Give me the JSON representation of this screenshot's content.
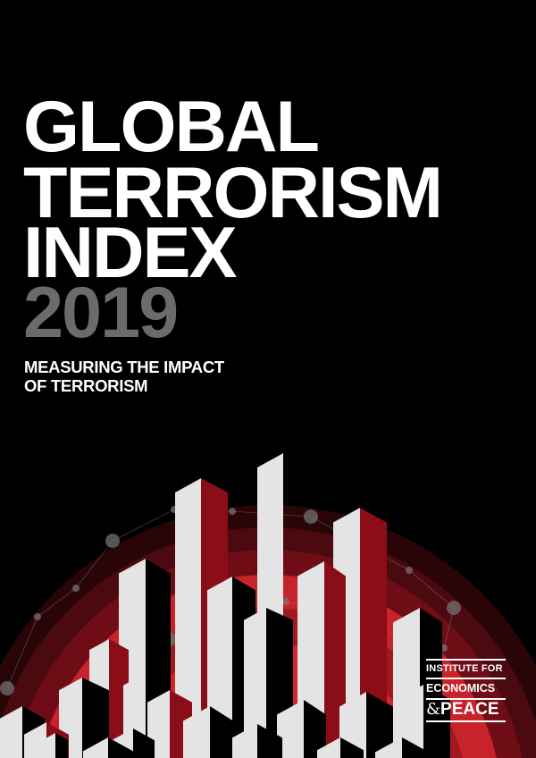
{
  "cover": {
    "title_lines": [
      "GLOBAL",
      "TERRORISM",
      "INDEX"
    ],
    "year": "2019",
    "subtitle_lines": [
      "MEASURING THE IMPACT",
      "OF TERRORISM"
    ]
  },
  "publisher_logo": {
    "line1": "INSTITUTE FOR",
    "line2": "ECONOMICS",
    "line3_amp": "&",
    "line3": "PEACE"
  },
  "colors": {
    "background": "#000000",
    "accent_red": "#c8222a",
    "dark_red": "#7a0c16",
    "year_gray": "#6b6b6b"
  }
}
